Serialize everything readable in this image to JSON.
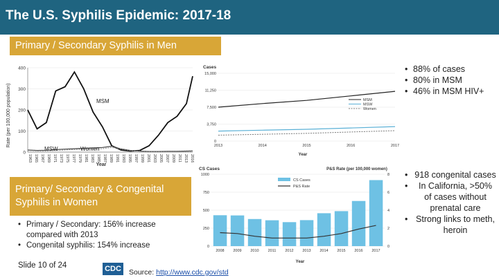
{
  "header": {
    "title": "The U.S. Syphilis Epidemic: 2017-18"
  },
  "sections": {
    "men_label": "Primary / Secondary Syphilis in Men",
    "women_label": "Primary/ Secondary & Congenital Syphilis in Women"
  },
  "men_bullets": [
    "88% of cases",
    "80% in MSM",
    "46% in MSM HIV+"
  ],
  "congenital_bullets": [
    "918 congenital cases",
    "In California, >50% of cases without prenatal care",
    "Strong links to meth, heroin"
  ],
  "women_bullets": [
    "Primary / Secondary: 156% increase compared with 2013",
    "Congenital syphilis: 154% increase"
  ],
  "footer": {
    "slide": "Slide 10 of 24",
    "logo": "CDC",
    "source_label": "Source:",
    "source_link": "http://www.cdc.gov/std"
  },
  "colors": {
    "header": "#1f6480",
    "tag": "#d8a637",
    "bar": "#6ec1e4",
    "line": "#333333"
  },
  "chart_data": [
    {
      "type": "line",
      "title": "",
      "ylabel": "Rate (per 100,000 population)",
      "xlabel": "Year",
      "ylim": [
        0,
        400
      ],
      "yticks": [
        "0",
        "100",
        "200",
        "300",
        "400"
      ],
      "x": [
        1963,
        1966,
        1969,
        1972,
        1975,
        1978,
        1981,
        1984,
        1987,
        1990,
        1993,
        1996,
        1999,
        2002,
        2005,
        2008,
        2011,
        2014,
        2016
      ],
      "xticks": [
        "1963",
        "1965",
        "1967",
        "1969",
        "1971",
        "1973",
        "1975",
        "1977",
        "1979",
        "1981",
        "1983",
        "1985",
        "1987",
        "1989",
        "1991",
        "1993",
        "1995",
        "1997",
        "1999",
        "2001",
        "2003",
        "2005",
        "2007",
        "2009",
        "2011",
        "2013",
        "2016"
      ],
      "series": [
        {
          "name": "MSM",
          "values": [
            200,
            110,
            140,
            290,
            310,
            380,
            300,
            190,
            120,
            30,
            10,
            5,
            8,
            30,
            80,
            140,
            170,
            230,
            360
          ]
        },
        {
          "name": "MSW",
          "values": [
            10,
            8,
            9,
            12,
            14,
            16,
            18,
            20,
            22,
            28,
            15,
            8,
            5,
            3,
            3,
            4,
            4,
            5,
            6
          ]
        },
        {
          "name": "Women",
          "values": [
            8,
            6,
            6,
            8,
            10,
            12,
            14,
            14,
            16,
            22,
            14,
            7,
            4,
            2,
            2,
            2,
            2,
            3,
            4
          ]
        }
      ],
      "annotations": [
        "MSM",
        "MSW",
        "Women"
      ]
    },
    {
      "type": "line",
      "title": "Cases",
      "xlabel": "Year",
      "ylim": [
        0,
        15000
      ],
      "yticks": [
        "0",
        "3,750",
        "7,500",
        "11,250",
        "15,000"
      ],
      "x": [
        2013,
        2014,
        2015,
        2016,
        2017
      ],
      "series": [
        {
          "name": "MSM",
          "values": [
            7500,
            8300,
            9000,
            10000,
            11000
          ]
        },
        {
          "name": "MSW",
          "values": [
            2200,
            2400,
            2600,
            2900,
            3200
          ]
        },
        {
          "name": "Women",
          "values": [
            1300,
            1500,
            1700,
            2000,
            2300
          ]
        }
      ],
      "legend": [
        "MSM",
        "MSW",
        "Women"
      ]
    },
    {
      "type": "bar",
      "title": "CS Cases",
      "right_title": "P&S Rate (per 100,000 women)",
      "xlabel": "Year",
      "ylim": [
        0,
        1000
      ],
      "yticks": [
        "0",
        "250",
        "500",
        "750",
        "1000"
      ],
      "y2ticks": [
        "0",
        "2",
        "4",
        "6",
        "8"
      ],
      "categories": [
        "2008",
        "2009",
        "2010",
        "2011",
        "2012",
        "2013",
        "2014",
        "2015",
        "2016",
        "2017"
      ],
      "series": [
        {
          "name": "CS Cases",
          "values": [
            430,
            427,
            377,
            360,
            334,
            362,
            458,
            487,
            628,
            918
          ]
        },
        {
          "name": "P&S Rate",
          "values": [
            1.5,
            1.4,
            1.1,
            0.9,
            0.9,
            0.9,
            1.1,
            1.4,
            1.9,
            2.3
          ]
        }
      ],
      "legend": [
        "CS Cases",
        "P&S Rate"
      ]
    }
  ]
}
